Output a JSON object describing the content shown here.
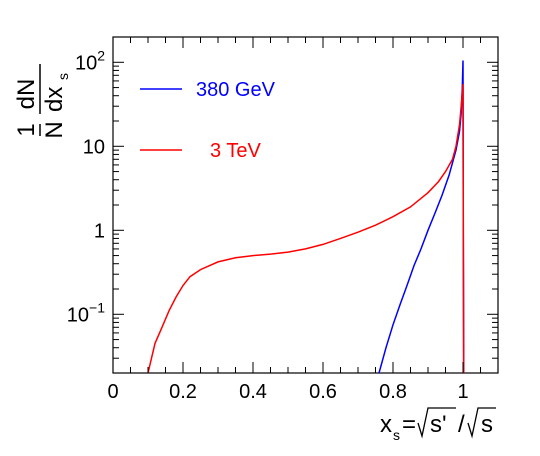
{
  "chart_data": {
    "type": "line",
    "xlabel": {
      "main": "x",
      "sub": "s",
      "eq": "=",
      "num": "s'",
      "slash": "/",
      "den": "s"
    },
    "ylabel": {
      "num": "1",
      "den_n": "N",
      "den_rest": "dx",
      "sub": "s",
      "dN": "dN"
    },
    "xlim": [
      0,
      1.1
    ],
    "ylim": [
      0.02,
      200
    ],
    "yscale": "log",
    "grid": false,
    "legend_position": "top-left",
    "x_ticks": [
      {
        "value": 0,
        "label": "0"
      },
      {
        "value": 0.2,
        "label": "0.2"
      },
      {
        "value": 0.4,
        "label": "0.4"
      },
      {
        "value": 0.6,
        "label": "0.6"
      },
      {
        "value": 0.8,
        "label": "0.8"
      },
      {
        "value": 1.0,
        "label": "1"
      }
    ],
    "y_ticks": [
      {
        "value": 0.1,
        "mantissa": "10",
        "exp": "−1"
      },
      {
        "value": 1,
        "mantissa": "1",
        "exp": ""
      },
      {
        "value": 10,
        "mantissa": "10",
        "exp": ""
      },
      {
        "value": 100,
        "mantissa": "10",
        "exp": "2"
      }
    ],
    "series": [
      {
        "name": "380 GeV",
        "color": "#0000ff",
        "x": [
          0.76,
          0.78,
          0.8,
          0.82,
          0.84,
          0.86,
          0.88,
          0.9,
          0.92,
          0.94,
          0.96,
          0.98,
          0.99,
          0.995,
          0.998,
          1.0,
          1.001,
          1.002
        ],
        "y": [
          0.02,
          0.04,
          0.075,
          0.13,
          0.22,
          0.38,
          0.6,
          1.0,
          1.6,
          2.6,
          4.5,
          9.0,
          15,
          25,
          50,
          105,
          1.0,
          0.02
        ]
      },
      {
        "name": "3 TeV",
        "color": "#ff0000",
        "x": [
          0.1,
          0.11,
          0.12,
          0.14,
          0.16,
          0.18,
          0.2,
          0.22,
          0.25,
          0.3,
          0.35,
          0.4,
          0.45,
          0.5,
          0.55,
          0.6,
          0.65,
          0.7,
          0.75,
          0.8,
          0.85,
          0.9,
          0.93,
          0.95,
          0.97,
          0.98,
          0.99,
          0.995,
          1.0,
          1.001,
          1.002
        ],
        "y": [
          0.02,
          0.03,
          0.045,
          0.07,
          0.11,
          0.16,
          0.22,
          0.28,
          0.34,
          0.42,
          0.47,
          0.5,
          0.52,
          0.55,
          0.6,
          0.68,
          0.8,
          0.95,
          1.15,
          1.45,
          1.9,
          2.8,
          3.8,
          5.0,
          7.0,
          10,
          18,
          30,
          55,
          1.0,
          0.02
        ]
      }
    ]
  }
}
